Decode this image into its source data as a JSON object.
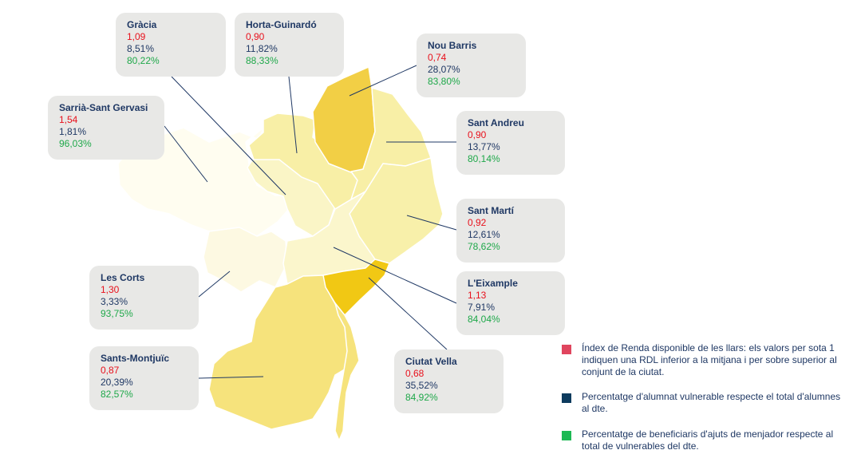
{
  "colors": {
    "rdl": "#e8111c",
    "vulnerable": "#1f3864",
    "beneficiaries": "#1fa84a",
    "legend_rdl": "#e0455e",
    "legend_vulnerable": "#0d3b5e",
    "legend_beneficiaries": "#1db954"
  },
  "districts": [
    {
      "key": "gracia",
      "name": "Gràcia",
      "rdl": "1,09",
      "vulnerable": "8,51%",
      "beneficiaries": "80,22%",
      "fill": "#faf5c6"
    },
    {
      "key": "horta",
      "name": "Horta-Guinardó",
      "rdl": "0,90",
      "vulnerable": "11,82%",
      "beneficiaries": "88,33%",
      "fill": "#f8efa6"
    },
    {
      "key": "nou-barris",
      "name": "Nou Barris",
      "rdl": "0,74",
      "vulnerable": "28,07%",
      "beneficiaries": "83,80%",
      "fill": "#f2cf45"
    },
    {
      "key": "sarria",
      "name": "Sarrià-Sant Gervasi",
      "rdl": "1,54",
      "vulnerable": "1,81%",
      "beneficiaries": "96,03%",
      "fill": "#fffdf0"
    },
    {
      "key": "sant-andreu",
      "name": "Sant Andreu",
      "rdl": "0,90",
      "vulnerable": "13,77%",
      "beneficiaries": "80,14%",
      "fill": "#f8efa6"
    },
    {
      "key": "sant-marti",
      "name": "Sant Martí",
      "rdl": "0,92",
      "vulnerable": "12,61%",
      "beneficiaries": "78,62%",
      "fill": "#f8f0aa"
    },
    {
      "key": "les-corts",
      "name": "Les Corts",
      "rdl": "1,30",
      "vulnerable": "3,33%",
      "beneficiaries": "93,75%",
      "fill": "#fdf9e2"
    },
    {
      "key": "eixample",
      "name": "L'Eixample",
      "rdl": "1,13",
      "vulnerable": "7,91%",
      "beneficiaries": "84,04%",
      "fill": "#fbf6cc"
    },
    {
      "key": "sants",
      "name": "Sants-Montjuïc",
      "rdl": "0,87",
      "vulnerable": "20,39%",
      "beneficiaries": "82,57%",
      "fill": "#f6e37c"
    },
    {
      "key": "ciutat-vella",
      "name": "Ciutat Vella",
      "rdl": "0,68",
      "vulnerable": "35,52%",
      "beneficiaries": "84,92%",
      "fill": "#f1c814"
    }
  ],
  "legend": [
    {
      "key": "rdl",
      "text": "Índex de Renda disponible de les llars:  els valors per sota 1 indiquen una RDL inferior a la mitjana i per sobre superior al conjunt de la ciutat."
    },
    {
      "key": "vulnerable",
      "text": "Percentatge d'alumnat vulnerable respecte el total d'alumnes al dte."
    },
    {
      "key": "beneficiaries",
      "text": "Percentatge de beneficiaris d'ajuts de menjador respecte al total de vulnerables del dte."
    }
  ]
}
